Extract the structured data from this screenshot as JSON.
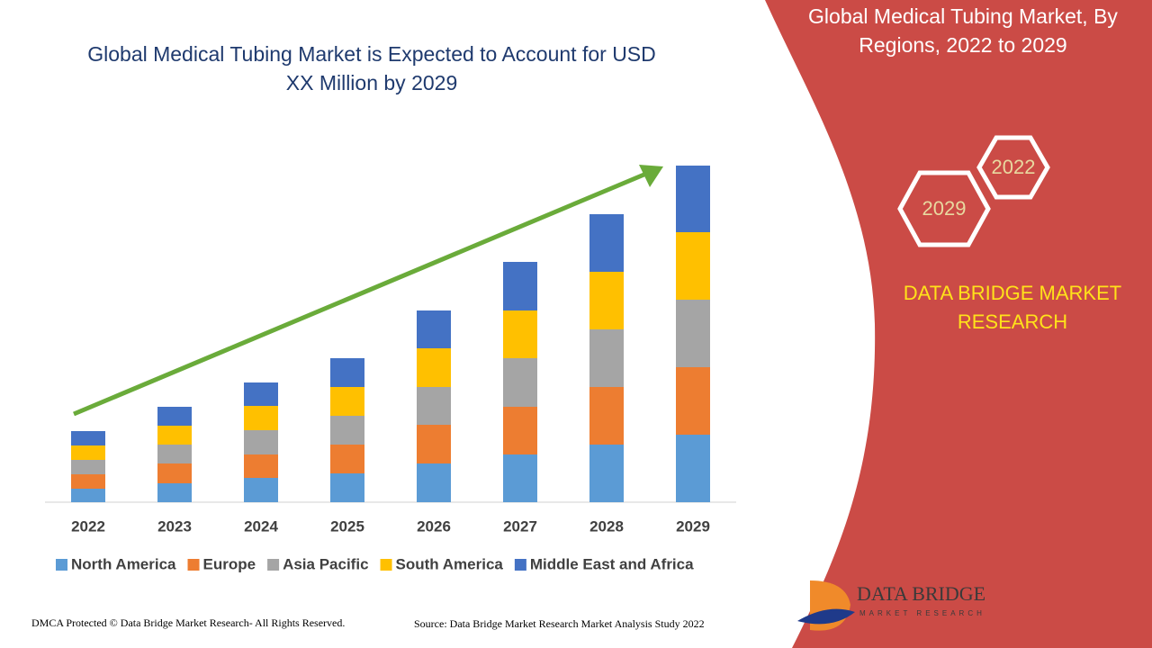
{
  "chart_data": {
    "type": "bar",
    "stacked": true,
    "title": "Global Medical Tubing Market is Expected to Account for USD XX Million by 2029",
    "categories": [
      "2022",
      "2023",
      "2024",
      "2025",
      "2026",
      "2027",
      "2028",
      "2029"
    ],
    "series": [
      {
        "name": "North America",
        "color": "#5b9bd5",
        "values": [
          15,
          21,
          27,
          32,
          43,
          53,
          64,
          75
        ]
      },
      {
        "name": "Europe",
        "color": "#ed7d31",
        "values": [
          16,
          22,
          26,
          32,
          43,
          53,
          64,
          75
        ]
      },
      {
        "name": "Asia Pacific",
        "color": "#a5a5a5",
        "values": [
          16,
          21,
          27,
          32,
          42,
          54,
          64,
          75
        ]
      },
      {
        "name": "South America",
        "color": "#ffc000",
        "values": [
          16,
          21,
          27,
          32,
          43,
          53,
          64,
          75
        ]
      },
      {
        "name": "Middle East and Africa",
        "color": "#4472c4",
        "values": [
          16,
          21,
          26,
          32,
          42,
          54,
          64,
          74
        ]
      }
    ],
    "ylim": [
      0,
      400
    ],
    "legend": "bottom"
  },
  "panel": {
    "title": "Global Medical Tubing Market, By Regions, 2022 to 2029",
    "hexagons": [
      "2022",
      "2029"
    ],
    "brand": "DATA BRIDGE MARKET RESEARCH",
    "logo_text": "DATA BRIDGE",
    "logo_subtext": "MARKET RESEARCH"
  },
  "footer": {
    "left": "DMCA Protected © Data Bridge Market Research- All Rights Reserved.",
    "right": "Source: Data Bridge Market Research Market Analysis Study 2022"
  }
}
